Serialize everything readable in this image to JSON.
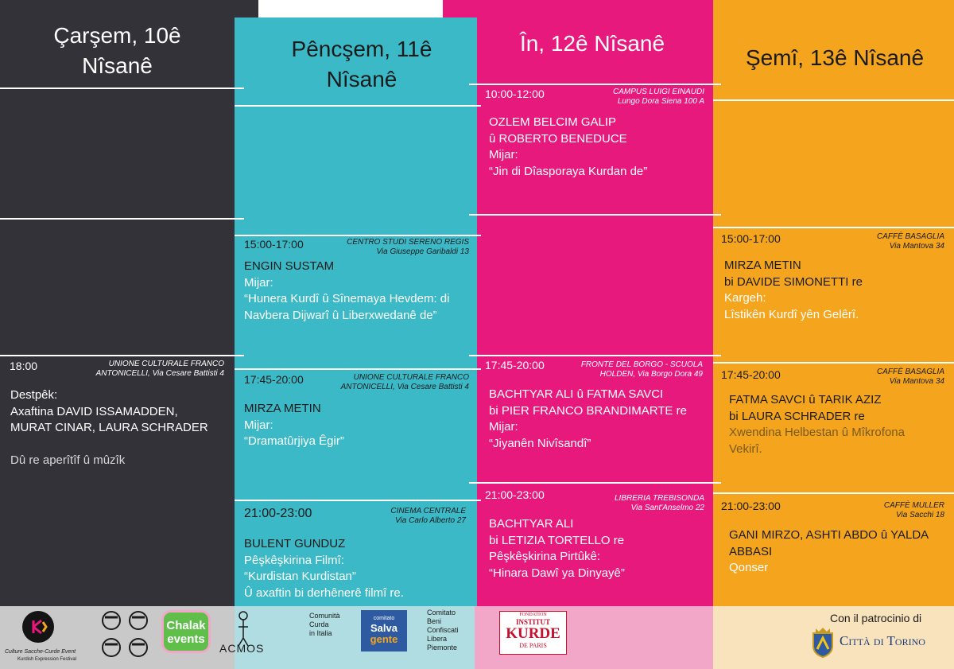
{
  "days": [
    {
      "title_line1": "Çarşem, 10ê",
      "title_line2": "Nîsanê",
      "events": [
        {
          "time": "18:00",
          "venue_line1": "UNIONE CULTURALE FRANCO",
          "venue_line2": "ANTONICELLI, Via Cesare Battisti 4",
          "lines": [
            "Destpêk:",
            "Axaftina DAVID ISSAMADDEN,",
            "MURAT CINAR, LAURA SCHRADER",
            "",
            "Dû re aperîtîf û mûzîk"
          ]
        }
      ]
    },
    {
      "title_line1": "Pêncşem, 11ê",
      "title_line2": "Nîsanê",
      "events": [
        {
          "time": "15:00-17:00",
          "venue_line1": "CENTRO STUDI SERENO REGIS",
          "venue_line2": "Via Giuseppe Garibaldi 13",
          "lines": [
            "ENGIN SUSTAM",
            "Mijar:",
            "“Hunera Kurdî û Sînemaya Hevdem: di",
            "Navbera Dijwarî û Liberxwedanê de”"
          ]
        },
        {
          "time": "17:45-20:00",
          "venue_line1": "UNIONE CULTURALE FRANCO",
          "venue_line2": "ANTONICELLI, Via Cesare Battisti 4",
          "lines": [
            "MIRZA METIN",
            "Mijar:",
            "“Dramatûrjiya Êgir”"
          ]
        },
        {
          "time": "21:00-23:00",
          "venue_line1": "CINEMA CENTRALE",
          "venue_line2": "Via Carlo Alberto 27",
          "lines": [
            "BULENT GUNDUZ",
            "Pêşkêşkirina Filmî:",
            "“Kurdistan Kurdistan”",
            "Û axaftin bi derhênerê filmî re."
          ]
        }
      ]
    },
    {
      "title_line1": "În, 12ê Nîsanê",
      "title_line2": "",
      "events": [
        {
          "time": "10:00-12:00",
          "venue_line1": "CAMPUS LUIGI EINAUDI",
          "venue_line2": "Lungo Dora Siena 100 A",
          "lines": [
            "OZLEM BELCIM GALIP",
            "û ROBERTO BENEDUCE",
            "Mijar:",
            "“Jin di Dîasporaya Kurdan de”"
          ]
        },
        {
          "time": "17:45-20:00",
          "venue_line1": "FRONTE DEL BORGO - SCUOLA",
          "venue_line2": "HOLDEN, Via Borgo Dora 49",
          "lines": [
            "BACHTYAR ALI û FATMA SAVCI",
            "bi PIER FRANCO BRANDIMARTE re",
            "Mijar:",
            "“Jiyanên Nivîsandî”"
          ]
        },
        {
          "time": "21:00-23:00",
          "venue_line1": "LIBRERIA TREBISONDA",
          "venue_line2": "Via Sant'Anselmo 22",
          "lines": [
            "BACHTYAR ALI",
            "bi LETIZIA TORTELLO re",
            "Pêşkêşkirina Pirtûkê:",
            "“Hinara Dawî ya Dinyayê”"
          ]
        }
      ]
    },
    {
      "title_line1": "Şemî, 13ê Nîsanê",
      "title_line2": "",
      "events": [
        {
          "time": "15:00-17:00",
          "venue_line1": "CAFFÈ BASAGLIA",
          "venue_line2": "Via Mantova 34",
          "lines": [
            "MIRZA METIN",
            "bi DAVIDE SIMONETTI re",
            "Kargeh:",
            "Lîstikên Kurdî yên Gelêrî."
          ]
        },
        {
          "time": "17:45-20:00",
          "venue_line1": "CAFFÈ BASAGLIA",
          "venue_line2": "Via Mantova 34",
          "lines": [
            "FATMA SAVCI û TARIK AZIZ",
            "bi LAURA SCHRADER re",
            "Xwendina Helbestan û Mîkrofona",
            "Vekirî."
          ]
        },
        {
          "time": "21:00-23:00",
          "venue_line1": "CAFFÈ MULLER",
          "venue_line2": "Via Sacchi 18",
          "lines": [
            "GANI MIRZO, ASHTI ABDO û YALDA",
            "ABBASI",
            "Qonser"
          ]
        }
      ]
    }
  ],
  "sponsors": {
    "kurdish_festival_name": "Culture Sacche-Curde Event",
    "kurdish_festival_sub": "Kurdish Expression Festival",
    "chalak_line1": "Chalak",
    "chalak_line2": "events",
    "acmos": "ACMOS",
    "comunita_line1": "Comunità",
    "comunita_line2": "Curda",
    "comunita_line3": "in Italia",
    "salva_line1": "comitato",
    "salva_line2": "Salva",
    "salva_line3": "gente",
    "beni_line1": "Comitato",
    "beni_line2": "Beni",
    "beni_line3": "Confiscati",
    "beni_line4": "Libera",
    "beni_line5": "Piemonte",
    "institut_line1": "FONDATION",
    "institut_line2": "INSTITUT",
    "institut_line3": "KURDE",
    "institut_line4": "DE PARIS",
    "patrocinio": "Con il patrocinio di",
    "citta": "Città di Torino"
  },
  "colors": {
    "dark": "#333238",
    "teal": "#3cb9c6",
    "magenta": "#e8197d",
    "orange": "#f5a51d"
  }
}
